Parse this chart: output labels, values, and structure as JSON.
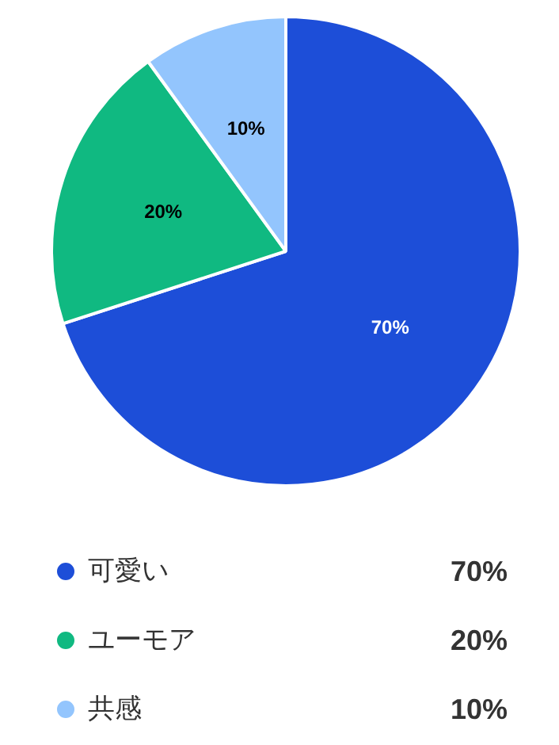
{
  "chart_data": {
    "type": "pie",
    "categories": [
      "可愛い",
      "ユーモア",
      "共感"
    ],
    "values": [
      70,
      20,
      10
    ],
    "colors": [
      "#1d4ed8",
      "#10b981",
      "#93c5fd"
    ],
    "value_labels": [
      "70%",
      "20%",
      "10%"
    ],
    "legend": "bottom"
  }
}
